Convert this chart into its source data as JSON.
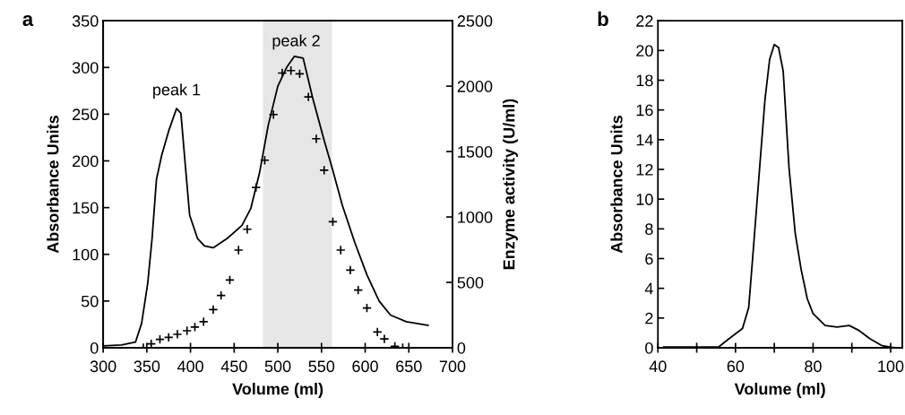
{
  "chart_data": [
    {
      "type": "line",
      "title": "a",
      "xlabel": "Volume (ml)",
      "ylabel": "Absorbance Units",
      "y2label": "Enzyme activity (U/ml)",
      "xlim": [
        300,
        700
      ],
      "xticks": [
        300,
        350,
        400,
        450,
        500,
        550,
        600,
        650,
        700
      ],
      "ylim": [
        0,
        350
      ],
      "yticks": [
        0,
        50,
        100,
        150,
        200,
        250,
        300,
        350
      ],
      "y2lim": [
        0,
        2500
      ],
      "y2ticks": [
        0,
        500,
        1000,
        1500,
        2000,
        2500
      ],
      "bands": [
        {
          "axis": "x",
          "from": 483,
          "to": 562,
          "color": "#e6e6e6"
        }
      ],
      "annotations": [
        "peak 1",
        "peak 2"
      ],
      "series": [
        {
          "color": "#000000",
          "line_style": "solid",
          "marker": "none",
          "x": [
            300,
            321,
            337,
            344,
            351,
            356,
            361,
            367,
            375,
            384,
            389,
            394,
            399,
            408,
            416,
            426,
            442,
            459,
            469,
            479,
            489,
            500,
            510,
            519,
            529,
            540,
            553,
            562,
            574,
            588,
            602,
            616,
            629,
            647,
            672
          ],
          "values": [
            2,
            3,
            6,
            26,
            69,
            117,
            180,
            206,
            232,
            256,
            251,
            196,
            142,
            117,
            109,
            107,
            117,
            131,
            149,
            187,
            238,
            280,
            300,
            312,
            310,
            267,
            222,
            193,
            152,
            113,
            78,
            50,
            35,
            28,
            24
          ]
        },
        {
          "type": "scatter",
          "axis": "y2",
          "color": "#000000",
          "marker": "cross",
          "x": [
            346,
            355,
            365,
            375,
            385,
            396,
            405,
            415,
            426,
            435,
            445,
            455,
            465,
            475,
            485,
            495,
            505,
            515,
            525,
            535,
            544,
            553,
            563,
            572,
            583,
            592,
            602,
            614,
            622,
            634,
            643
          ],
          "values": [
            0,
            30,
            64,
            80,
            103,
            130,
            158,
            199,
            292,
            400,
            518,
            747,
            906,
            1226,
            1434,
            1783,
            2100,
            2119,
            2094,
            1918,
            1598,
            1358,
            963,
            747,
            594,
            441,
            304,
            121,
            68,
            11,
            0
          ]
        }
      ]
    },
    {
      "type": "line",
      "title": "b",
      "xlabel": "Volume (ml)",
      "ylabel": "Absorbance Units",
      "xlim": [
        40,
        103
      ],
      "xticks": [
        40,
        {
          "value": 50,
          "label": null
        },
        60,
        {
          "value": 70,
          "label": null
        },
        80,
        {
          "value": 90,
          "label": null
        },
        100
      ],
      "ylim": [
        0,
        22
      ],
      "yticks": [
        0,
        2,
        4,
        6,
        8,
        10,
        12,
        14,
        16,
        18,
        20,
        22
      ],
      "series": [
        {
          "color": "#000000",
          "line_style": "solid",
          "marker": "none",
          "x": [
            41.5,
            55.6,
            58.3,
            61.8,
            63.4,
            64.5,
            66.1,
            67.6,
            68.8,
            70.0,
            71.1,
            72.3,
            73.8,
            75.4,
            76.9,
            78.5,
            80.0,
            83.1,
            86.2,
            89.3,
            91.6,
            94.7,
            97.8,
            100.1,
            101.7
          ],
          "values": [
            0.05,
            0.05,
            0.6,
            1.3,
            2.7,
            6.3,
            11.7,
            16.7,
            19.4,
            20.4,
            20.2,
            18.6,
            12.1,
            7.7,
            5.3,
            3.3,
            2.3,
            1.5,
            1.4,
            1.5,
            1.2,
            0.6,
            0.14,
            0.04,
            0
          ]
        }
      ]
    }
  ]
}
